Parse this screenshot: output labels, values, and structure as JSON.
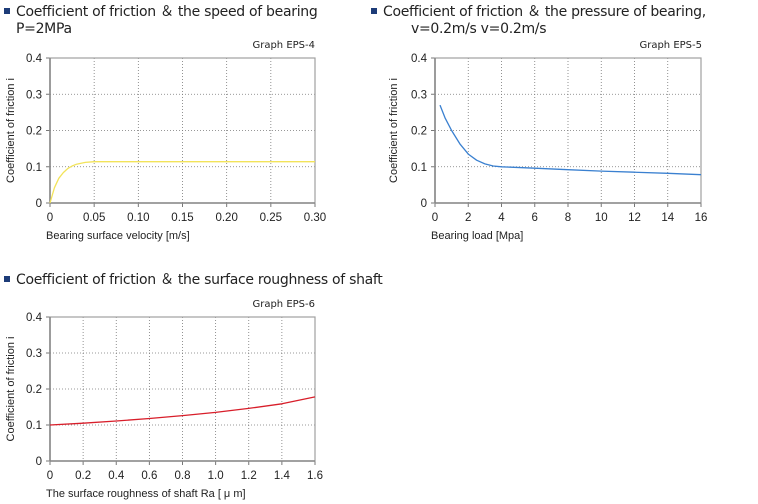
{
  "chart_data": [
    {
      "type": "line",
      "title": "Coefficient of friction ＆ the speed of bearing",
      "subtitle": "P=2MPa",
      "graph_label": "Graph  EPS-4",
      "xlabel": "Bearing surface velocity  [m/s]",
      "ylabel": "Coefficient  of  friction   i",
      "xlim": [
        0,
        0.3
      ],
      "ylim": [
        0,
        0.4
      ],
      "xticks": [
        "0",
        "0.05",
        "0.10",
        "0.15",
        "0.20",
        "0.25",
        "0.30"
      ],
      "xtick_values": [
        0,
        0.05,
        0.1,
        0.15,
        0.2,
        0.25,
        0.3
      ],
      "yticks": [
        "0",
        "0.1",
        "0.2",
        "0.3",
        "0.4"
      ],
      "ytick_values": [
        0,
        0.1,
        0.2,
        0.3,
        0.4
      ],
      "grid": true,
      "color": "#f2e35a",
      "x": [
        0,
        0.005,
        0.01,
        0.015,
        0.02,
        0.025,
        0.03,
        0.04,
        0.05,
        0.1,
        0.15,
        0.2,
        0.25,
        0.3
      ],
      "y": [
        0,
        0.042,
        0.068,
        0.084,
        0.095,
        0.102,
        0.107,
        0.112,
        0.114,
        0.114,
        0.114,
        0.114,
        0.114,
        0.114
      ]
    },
    {
      "type": "line",
      "title": "Coefficient of friction  ＆  the pressure of bearing,",
      "subtitle": "v=0.2m/s v=0.2m/s",
      "graph_label": "Graph  EPS-5",
      "xlabel": "Bearing load  [Mpa]",
      "ylabel": "Coefficient  of  friction   i",
      "xlim": [
        0,
        16
      ],
      "ylim": [
        0,
        0.4
      ],
      "xticks": [
        "0",
        "2",
        "4",
        "6",
        "8",
        "10",
        "12",
        "14",
        "16"
      ],
      "xtick_values": [
        0,
        2,
        4,
        6,
        8,
        10,
        12,
        14,
        16
      ],
      "yticks": [
        "0",
        "0.1",
        "0.2",
        "0.3",
        "0.4"
      ],
      "ytick_values": [
        0,
        0.1,
        0.2,
        0.3,
        0.4
      ],
      "grid": true,
      "color": "#3a80d0",
      "x": [
        0.3,
        0.6,
        1,
        1.5,
        2,
        2.5,
        3,
        3.5,
        4,
        6,
        8,
        10,
        12,
        14,
        16
      ],
      "y": [
        0.27,
        0.235,
        0.2,
        0.163,
        0.135,
        0.118,
        0.108,
        0.102,
        0.1,
        0.096,
        0.092,
        0.088,
        0.085,
        0.082,
        0.078
      ]
    },
    {
      "type": "line",
      "title": "Coefficient of friction ＆ the surface roughness of shaft",
      "graph_label": "Graph  EPS-6",
      "xlabel": "The surface roughness of shaft  Ra [ μ m]",
      "ylabel": "Coefficient  of  friction   i",
      "xlim": [
        0,
        1.6
      ],
      "ylim": [
        0,
        0.4
      ],
      "xticks": [
        "0",
        "0.2",
        "0.4",
        "0.6",
        "0.8",
        "1.0",
        "1.2",
        "1.4",
        "1.6"
      ],
      "xtick_values": [
        0,
        0.2,
        0.4,
        0.6,
        0.8,
        1.0,
        1.2,
        1.4,
        1.6
      ],
      "yticks": [
        "0",
        "0.1",
        "0.2",
        "0.3",
        "0.4"
      ],
      "ytick_values": [
        0,
        0.1,
        0.2,
        0.3,
        0.4
      ],
      "grid": true,
      "color": "#d81e2a",
      "x": [
        0,
        0.2,
        0.4,
        0.6,
        0.8,
        1.0,
        1.2,
        1.4,
        1.6
      ],
      "y": [
        0.1,
        0.105,
        0.111,
        0.118,
        0.126,
        0.135,
        0.146,
        0.159,
        0.178
      ]
    }
  ]
}
